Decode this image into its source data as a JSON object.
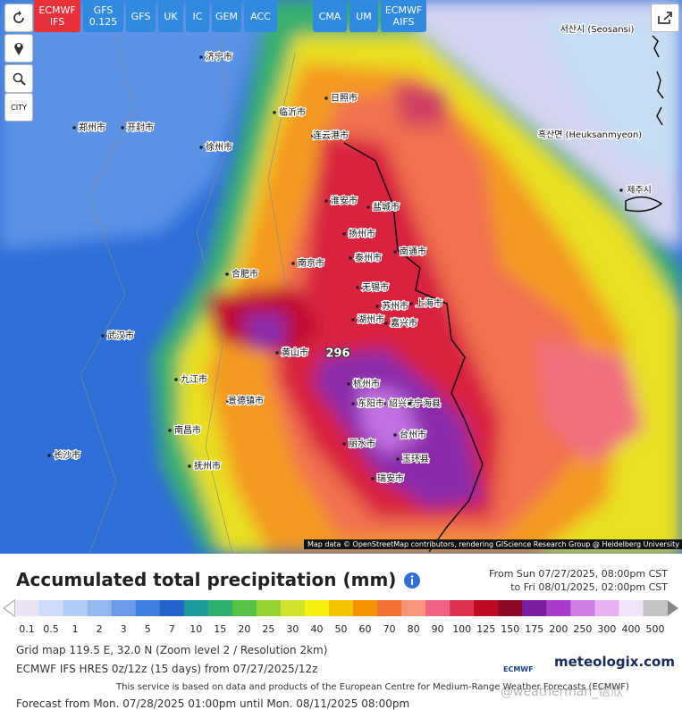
{
  "toolbar": {
    "models": [
      {
        "lines": [
          "ECMWF",
          "IFS"
        ],
        "active": true
      },
      {
        "lines": [
          "GFS",
          "0.125"
        ]
      },
      {
        "lines": [
          "GFS"
        ]
      },
      {
        "lines": [
          "UK"
        ]
      },
      {
        "lines": [
          "IC"
        ]
      },
      {
        "lines": [
          "GEM"
        ]
      },
      {
        "lines": [
          "ACC"
        ]
      },
      {
        "lines": [
          "CMA"
        ]
      },
      {
        "lines": [
          "UM"
        ]
      },
      {
        "lines": [
          "ECMWF",
          "AIFS"
        ]
      }
    ],
    "city": "CITY"
  },
  "map": {
    "labels": [
      "济宁市",
      "临沂市",
      "日照市",
      "连云港市",
      "郑州市",
      "开封市",
      "徐州市",
      "淮安市",
      "盐城市",
      "扬州市",
      "泰州市",
      "南京市",
      "合肥市",
      "南通市",
      "无锡市",
      "上海市",
      "苏州市",
      "湖州市",
      "嘉兴市",
      "杭州市",
      "绍兴市",
      "宁海县",
      "东阳市",
      "丽水市",
      "台州市",
      "玉环县",
      "瑞安市",
      "黄山市",
      "武汉市",
      "九江市",
      "南昌市",
      "长沙市",
      "抚州市",
      "景德镇市",
      "서산시 (Seosansi)",
      "흑산면 (Heuksanmyeon)",
      "제주시"
    ],
    "max_value": "296",
    "attribution": "Map data © OpenStreetMap contributors, rendering GIScience Research Group @ Heidelberg University"
  },
  "legend": {
    "title": "Accumulated total precipitation (mm)",
    "from": "From Sun 07/27/2025, 08:00pm CST",
    "to": "to Fri 08/01/2025, 02:00pm CST",
    "scale": {
      "values": [
        0.1,
        0.5,
        1,
        2,
        3,
        5,
        7,
        10,
        15,
        20,
        25,
        30,
        40,
        50,
        60,
        70,
        80,
        90,
        100,
        125,
        150,
        175,
        200,
        250,
        300,
        400,
        500
      ],
      "colors": [
        "#ece4f4",
        "#cfdcf8",
        "#b2cdf6",
        "#93b8f0",
        "#6c9ce8",
        "#3f7fe0",
        "#2462cc",
        "#1d9a9c",
        "#2fb070",
        "#55c244",
        "#95d232",
        "#d2e22e",
        "#f6ef10",
        "#f4c400",
        "#f49200",
        "#f47030",
        "#f6957a",
        "#ee6284",
        "#dc3352",
        "#be0a22",
        "#8e0a24",
        "#7a1e9e",
        "#a83ccc",
        "#cf7ee6",
        "#e6b2f2",
        "#f2e4f8",
        "#c4c4c4"
      ]
    }
  },
  "info": {
    "grid": "Grid map 119.5 E, 32.0 N (Zoom level 2 / Resolution 2km)",
    "model": "ECMWF IFS HRES 0z/12z (15 days) from 07/27/2025/12z",
    "notice": "This service is based on data and products of the European Centre for Medium-Range Weather Forecasts (ECMWF)",
    "forecast": "Forecast from Mon. 07/28/2025 01:00pm until Mon. 08/11/2025 08:00pm"
  },
  "branding": {
    "ecmwf": "ECMWF",
    "site": "meteologix.com",
    "watermark": "@weatherman_信欣"
  }
}
